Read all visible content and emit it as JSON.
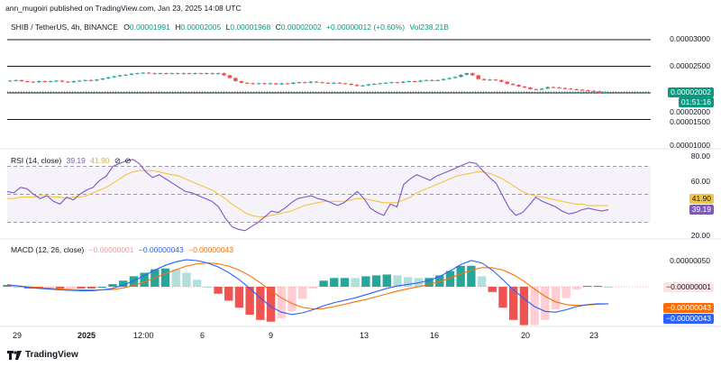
{
  "header": {
    "published": "ann_mugoiri published on TradingView.com, Jan 23, 2025 14:08 UTC",
    "symbol": "SHIB / TetherUS, 4h, BINANCE",
    "o_label": "O",
    "o_value": "0.00001991",
    "h_label": "H",
    "h_value": "0.00002005",
    "l_label": "L",
    "l_value": "0.00001968",
    "c_label": "C",
    "c_value": "0.00002002",
    "change": "+0.00000012 (+0.60%)",
    "vol": "Vol238.21B"
  },
  "price_axis": {
    "labels": [
      "0.00003000",
      "0.00002500",
      "0.00002000",
      "0.00001500",
      "0.00001000"
    ],
    "current_price": "0.00002002",
    "countdown": "01:51:16"
  },
  "rsi": {
    "title": "RSI (14, close)",
    "rsi_value": "39.19",
    "ma_value": "41.90",
    "icons": [
      "eye-off-icon",
      "eye-off-icon"
    ],
    "axis_labels": [
      "80.00",
      "60.00",
      "20.00"
    ]
  },
  "macd": {
    "title": "MACD (12, 26, close)",
    "hist_value": "−0.00000001",
    "macd_value": "−0.00000043",
    "signal_value": "−0.00000043",
    "axis_labels": [
      "0.00000050"
    ],
    "tag_hist": "−0.00000001",
    "tag_signal": "−0.00000043",
    "tag_macd": "−0.00000043"
  },
  "time_axis": [
    "29",
    "2025",
    "12:00",
    "6",
    "9",
    "13",
    "16",
    "20",
    "23"
  ],
  "footer": {
    "brand": "TradingView"
  },
  "colors": {
    "up": "#26a69a",
    "down": "#ef5350",
    "rsi": "#7e57c2",
    "rsi_ma": "#f5c542",
    "macd": "#2962ff",
    "signal": "#ff6d00",
    "hist_up_strong": "#26a69a",
    "hist_up_weak": "#b2dfdb",
    "hist_down_strong": "#ef5350",
    "hist_down_weak": "#ffcdd2"
  },
  "chart_data": [
    {
      "type": "candlestick",
      "title": "SHIB / TetherUS, 4h, BINANCE",
      "ylim": [
        1e-05,
        3.1e-05
      ],
      "horizontal_levels": [
        3e-05,
        2.5e-05,
        2e-05,
        1.5e-05
      ],
      "close_series": [
        2.23e-05,
        2.24e-05,
        2.22e-05,
        2.21e-05,
        2.2e-05,
        2.22e-05,
        2.21e-05,
        2.22e-05,
        2.23e-05,
        2.21e-05,
        2.2e-05,
        2.22e-05,
        2.23e-05,
        2.24e-05,
        2.23e-05,
        2.25e-05,
        2.27e-05,
        2.29e-05,
        2.31e-05,
        2.33e-05,
        2.34e-05,
        2.36e-05,
        2.37e-05,
        2.38e-05,
        2.37e-05,
        2.36e-05,
        2.37e-05,
        2.36e-05,
        2.37e-05,
        2.36e-05,
        2.37e-05,
        2.36e-05,
        2.37e-05,
        2.36e-05,
        2.37e-05,
        2.36e-05,
        2.37e-05,
        2.33e-05,
        2.28e-05,
        2.22e-05,
        2.19e-05,
        2.18e-05,
        2.17e-05,
        2.18e-05,
        2.17e-05,
        2.18e-05,
        2.16e-05,
        2.18e-05,
        2.17e-05,
        2.19e-05,
        2.2e-05,
        2.19e-05,
        2.21e-05,
        2.2e-05,
        2.19e-05,
        2.18e-05,
        2.19e-05,
        2.18e-05,
        2.17e-05,
        2.15e-05,
        2.13e-05,
        2.14e-05,
        2.16e-05,
        2.17e-05,
        2.18e-05,
        2.19e-05,
        2.2e-05,
        2.19e-05,
        2.21e-05,
        2.22e-05,
        2.21e-05,
        2.23e-05,
        2.24e-05,
        2.23e-05,
        2.24e-05,
        2.26e-05,
        2.28e-05,
        2.3e-05,
        2.34e-05,
        2.37e-05,
        2.33e-05,
        2.26e-05,
        2.24e-05,
        2.25e-05,
        2.24e-05,
        2.21e-05,
        2.17e-05,
        2.15e-05,
        2.12e-05,
        2.1e-05,
        2.07e-05,
        2.06e-05,
        2.08e-05,
        2.11e-05,
        2.1e-05,
        2.09e-05,
        2.08e-05,
        2.07e-05,
        2.06e-05,
        2.05e-05,
        2.04e-05,
        2.03e-05,
        2e-05,
        2.02e-05
      ]
    },
    {
      "type": "line",
      "title": "RSI (14, close)",
      "ylim": [
        15,
        90
      ],
      "levels": [
        70,
        50,
        30
      ],
      "series": [
        {
          "name": "RSI",
          "values": [
            52,
            51,
            55,
            54,
            50,
            47,
            49,
            45,
            43,
            48,
            46,
            50,
            53,
            55,
            60,
            63,
            70,
            72,
            74,
            75,
            72,
            66,
            62,
            64,
            61,
            58,
            55,
            52,
            51,
            49,
            47,
            45,
            41,
            33,
            27,
            25,
            24,
            27,
            30,
            34,
            38,
            37,
            40,
            44,
            47,
            48,
            49,
            47,
            46,
            44,
            42,
            44,
            48,
            52,
            47,
            40,
            37,
            35,
            43,
            41,
            57,
            61,
            64,
            62,
            60,
            63,
            65,
            67,
            69,
            71,
            73,
            72,
            67,
            62,
            58,
            49,
            40,
            35,
            37,
            42,
            48,
            45,
            43,
            41,
            38,
            36,
            37,
            39,
            40,
            39,
            38,
            39
          ]
        },
        {
          "name": "RSI MA",
          "values": [
            47,
            47,
            48,
            48,
            48,
            49,
            49,
            48,
            48,
            47,
            48,
            48,
            49,
            51,
            53,
            55,
            58,
            61,
            64,
            66,
            67,
            67,
            67,
            66,
            65,
            64,
            63,
            61,
            59,
            57,
            55,
            53,
            50,
            47,
            43,
            40,
            37,
            35,
            34,
            34,
            35,
            36,
            37,
            38,
            40,
            42,
            43,
            44,
            45,
            45,
            45,
            45,
            46,
            47,
            47,
            46,
            45,
            44,
            44,
            44,
            46,
            48,
            51,
            53,
            55,
            57,
            59,
            61,
            63,
            64,
            65,
            66,
            66,
            65,
            63,
            61,
            58,
            55,
            52,
            50,
            49,
            48,
            47,
            46,
            45,
            44,
            43,
            43,
            42,
            42,
            42,
            41.9
          ]
        }
      ]
    },
    {
      "type": "line",
      "title": "MACD (12, 26, close)",
      "ylim": [
        -1.1e-06,
        8.5e-07
      ],
      "series": [
        {
          "name": "MACD",
          "values": [
            5e-08,
            2e-08,
            -2e-08,
            -4e-08,
            -6e-08,
            -8e-08,
            -9e-08,
            -1e-07,
            -1e-07,
            -8e-08,
            -4e-08,
            4e-08,
            1.5e-07,
            2.8e-07,
            4.2e-07,
            5.4e-07,
            6.3e-07,
            6.8e-07,
            6.6e-07,
            6e-07,
            5e-07,
            3.6e-07,
            1.8e-07,
            -4e-08,
            -2.8e-07,
            -5e-07,
            -6.4e-07,
            -7e-07,
            -6.6e-07,
            -5.8e-07,
            -4.8e-07,
            -4e-07,
            -3.4e-07,
            -2.8e-07,
            -2e-07,
            -1.2e-07,
            -4e-08,
            2e-08,
            6e-08,
            1e-07,
            1.6e-07,
            2.6e-07,
            4e-07,
            5.6e-07,
            6.6e-07,
            6e-07,
            4.2e-07,
            1.8e-07,
            -8e-08,
            -3e-07,
            -5e-07,
            -6.2e-07,
            -6.4e-07,
            -5.8e-07,
            -5e-07,
            -4.5e-07,
            -4.3e-07,
            -4.3e-07
          ]
        },
        {
          "name": "Signal",
          "values": [
            3e-08,
            2e-08,
            0.0,
            -2e-08,
            -4e-08,
            -6e-08,
            -7e-08,
            -8e-08,
            -8e-08,
            -8e-08,
            -7e-08,
            -3e-08,
            3e-08,
            1.2e-07,
            2.2e-07,
            3.3e-07,
            4.3e-07,
            5.2e-07,
            5.8e-07,
            6e-07,
            5.8e-07,
            5.2e-07,
            4.2e-07,
            2.8e-07,
            1e-07,
            -1e-07,
            -2.8e-07,
            -4.2e-07,
            -5.2e-07,
            -5.6e-07,
            -5.5e-07,
            -5e-07,
            -4.4e-07,
            -3.8e-07,
            -3.2e-07,
            -2.5e-07,
            -1.8e-07,
            -1.1e-07,
            -5e-08,
            0.0,
            6e-08,
            1.3e-07,
            2.2e-07,
            3.2e-07,
            4.2e-07,
            4.8e-07,
            4.8e-07,
            4.2e-07,
            3e-07,
            1.4e-07,
            -6e-08,
            -2.4e-07,
            -3.8e-07,
            -4.5e-07,
            -4.7e-07,
            -4.6e-07,
            -4.4e-07,
            -4.3e-07
          ]
        }
      ]
    }
  ]
}
